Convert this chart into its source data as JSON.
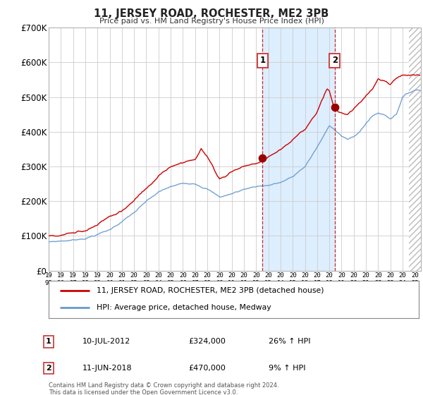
{
  "title": "11, JERSEY ROAD, ROCHESTER, ME2 3PB",
  "subtitle": "Price paid vs. HM Land Registry's House Price Index (HPI)",
  "legend_line1": "11, JERSEY ROAD, ROCHESTER, ME2 3PB (detached house)",
  "legend_line2": "HPI: Average price, detached house, Medway",
  "annotation1_label": "1",
  "annotation1_date": "10-JUL-2012",
  "annotation1_price": "£324,000",
  "annotation1_hpi": "26% ↑ HPI",
  "annotation2_label": "2",
  "annotation2_date": "11-JUN-2018",
  "annotation2_price": "£470,000",
  "annotation2_hpi": "9% ↑ HPI",
  "footer": "Contains HM Land Registry data © Crown copyright and database right 2024.\nThis data is licensed under the Open Government Licence v3.0.",
  "red_color": "#cc0000",
  "blue_color": "#6699cc",
  "background_color": "#ffffff",
  "grid_color": "#cccccc",
  "shaded_region_color": "#ddeeff",
  "ylim": [
    0,
    700000
  ],
  "yticks": [
    0,
    100000,
    200000,
    300000,
    400000,
    500000,
    600000,
    700000
  ],
  "ytick_labels": [
    "£0",
    "£100K",
    "£200K",
    "£300K",
    "£400K",
    "£500K",
    "£600K",
    "£700K"
  ],
  "sale1_x": 2012.52,
  "sale1_y": 324000,
  "sale2_x": 2018.44,
  "sale2_y": 470000,
  "vline1_x": 2012.52,
  "vline2_x": 2018.44,
  "xmin": 1995.0,
  "xmax": 2025.5,
  "hatch_start": 2024.5
}
